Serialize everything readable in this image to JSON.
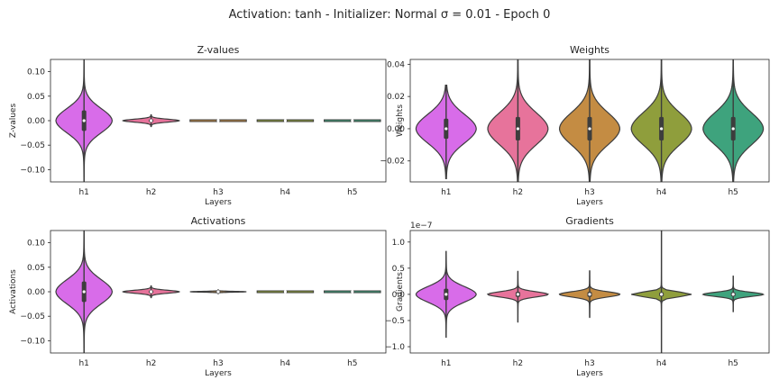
{
  "figure_title": "Activation: tanh - Initializer: Normal σ = 0.01 - Epoch 0",
  "colors": {
    "h1": "#d86ce9",
    "h2": "#e7739b",
    "h3": "#c48c43",
    "h4": "#8f9e3c",
    "h5": "#3ea37d",
    "outline": "#3d3d3d"
  },
  "chart_data": [
    {
      "type": "violin",
      "title": "Z-values",
      "xlabel": "Layers",
      "ylabel": "Z-values",
      "categories": [
        "h1",
        "h2",
        "h3",
        "h4",
        "h5"
      ],
      "ylim": [
        -0.125,
        0.125
      ],
      "yticks": [
        -0.1,
        -0.05,
        0.0,
        0.05,
        0.1
      ],
      "ytick_labels": [
        "−0.10",
        "−0.05",
        "0.00",
        "0.05",
        "0.10"
      ],
      "offset_text": "",
      "series": [
        {
          "category": "h1",
          "median": 0.0,
          "q1": -0.02,
          "q3": 0.02,
          "min": -0.13,
          "max": 0.13,
          "spread": 0.025
        },
        {
          "category": "h2",
          "median": 0.0,
          "q1": -0.002,
          "q3": 0.002,
          "min": -0.012,
          "max": 0.012,
          "spread": 0.003
        },
        {
          "category": "h3",
          "median": 0.0,
          "q1": -0.0003,
          "q3": 0.0003,
          "min": -0.002,
          "max": 0.002,
          "spread": 0.0005
        },
        {
          "category": "h4",
          "median": 0.0,
          "q1": -0.0001,
          "q3": 0.0001,
          "min": -0.001,
          "max": 0.001,
          "spread": 0.0003
        },
        {
          "category": "h5",
          "median": 0.0,
          "q1": -0.0001,
          "q3": 0.0001,
          "min": -0.001,
          "max": 0.001,
          "spread": 0.0003
        }
      ]
    },
    {
      "type": "violin",
      "title": "Weights",
      "xlabel": "Layers",
      "ylabel": "Weights",
      "categories": [
        "h1",
        "h2",
        "h3",
        "h4",
        "h5"
      ],
      "ylim": [
        -0.033,
        0.043
      ],
      "yticks": [
        -0.02,
        0.0,
        0.02,
        0.04
      ],
      "ytick_labels": [
        "−0.02",
        "0.00",
        "0.02",
        "0.04"
      ],
      "offset_text": "",
      "series": [
        {
          "category": "h1",
          "median": 0.0,
          "q1": -0.006,
          "q3": 0.006,
          "min": -0.031,
          "max": 0.027,
          "spread": 0.009
        },
        {
          "category": "h2",
          "median": 0.0,
          "q1": -0.007,
          "q3": 0.007,
          "min": -0.036,
          "max": 0.046,
          "spread": 0.01
        },
        {
          "category": "h3",
          "median": 0.0,
          "q1": -0.007,
          "q3": 0.007,
          "min": -0.036,
          "max": 0.046,
          "spread": 0.01
        },
        {
          "category": "h4",
          "median": 0.0,
          "q1": -0.007,
          "q3": 0.007,
          "min": -0.036,
          "max": 0.046,
          "spread": 0.01
        },
        {
          "category": "h5",
          "median": 0.0,
          "q1": -0.007,
          "q3": 0.007,
          "min": -0.036,
          "max": 0.046,
          "spread": 0.01
        }
      ]
    },
    {
      "type": "violin",
      "title": "Activations",
      "xlabel": "Layers",
      "ylabel": "Activations",
      "categories": [
        "h1",
        "h2",
        "h3",
        "h4",
        "h5"
      ],
      "ylim": [
        -0.125,
        0.125
      ],
      "yticks": [
        -0.1,
        -0.05,
        0.0,
        0.05,
        0.1
      ],
      "ytick_labels": [
        "−0.10",
        "−0.05",
        "0.00",
        "0.05",
        "0.10"
      ],
      "offset_text": "",
      "series": [
        {
          "category": "h1",
          "median": 0.0,
          "q1": -0.02,
          "q3": 0.02,
          "min": -0.13,
          "max": 0.13,
          "spread": 0.025
        },
        {
          "category": "h2",
          "median": 0.0,
          "q1": -0.002,
          "q3": 0.002,
          "min": -0.012,
          "max": 0.012,
          "spread": 0.003
        },
        {
          "category": "h3",
          "median": 0.0,
          "q1": -0.0005,
          "q3": 0.0005,
          "min": -0.004,
          "max": 0.004,
          "spread": 0.0008
        },
        {
          "category": "h4",
          "median": 0.0,
          "q1": -0.0001,
          "q3": 0.0001,
          "min": -0.001,
          "max": 0.001,
          "spread": 0.0003
        },
        {
          "category": "h5",
          "median": 0.0,
          "q1": -0.0001,
          "q3": 0.0001,
          "min": -0.001,
          "max": 0.001,
          "spread": 0.0003
        }
      ]
    },
    {
      "type": "violin",
      "title": "Gradients",
      "xlabel": "Layers",
      "ylabel": "Gradients",
      "categories": [
        "h1",
        "h2",
        "h3",
        "h4",
        "h5"
      ],
      "ylim": [
        -1.12,
        1.22
      ],
      "yticks": [
        -1.0,
        -0.5,
        0.0,
        0.5,
        1.0
      ],
      "ytick_labels": [
        "−1.0",
        "−0.5",
        "0.0",
        "0.5",
        "1.0"
      ],
      "offset_text": "1e−7",
      "series": [
        {
          "category": "h1",
          "median": 0.0,
          "q1": -0.1,
          "q3": 0.1,
          "min": -0.82,
          "max": 0.82,
          "spread": 0.15
        },
        {
          "category": "h2",
          "median": 0.0,
          "q1": -0.04,
          "q3": 0.04,
          "min": -0.53,
          "max": 0.44,
          "spread": 0.05
        },
        {
          "category": "h3",
          "median": 0.0,
          "q1": -0.04,
          "q3": 0.04,
          "min": -0.44,
          "max": 0.45,
          "spread": 0.05
        },
        {
          "category": "h4",
          "median": 0.0,
          "q1": -0.03,
          "q3": 0.03,
          "min": -1.3,
          "max": 1.3,
          "spread": 0.045
        },
        {
          "category": "h5",
          "median": 0.0,
          "q1": -0.03,
          "q3": 0.03,
          "min": -0.33,
          "max": 0.35,
          "spread": 0.04
        }
      ]
    }
  ]
}
